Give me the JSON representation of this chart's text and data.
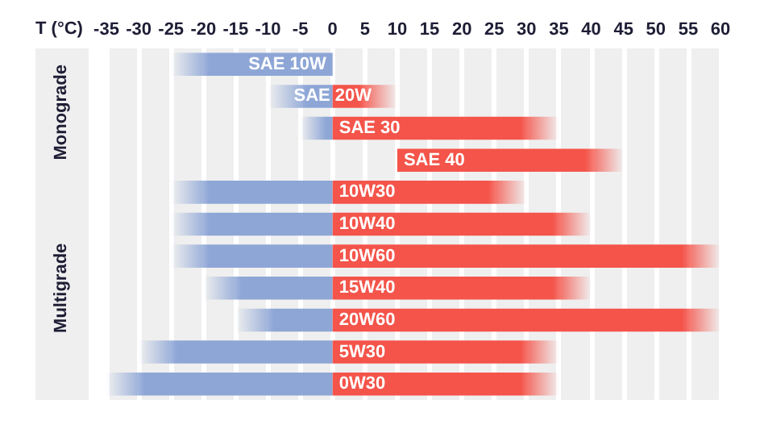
{
  "chart_data": {
    "type": "bar",
    "orientation": "horizontal",
    "xlabel": "T (°C)",
    "categories": [
      "SAE 10W",
      "SAE 20W",
      "SAE 30",
      "SAE 40",
      "10W30",
      "10W40",
      "10W60",
      "15W40",
      "20W60",
      "5W30",
      "0W30"
    ],
    "series": [
      {
        "color": "#8ea6d6",
        "base": [
          -25,
          -10,
          -5,
          null,
          -25,
          -25,
          -25,
          -20,
          -15,
          -30,
          -35
        ],
        "values": [
          25,
          10,
          5,
          null,
          25,
          25,
          25,
          20,
          15,
          30,
          35
        ]
      },
      {
        "color": "#f4544a",
        "base": [
          null,
          0,
          0,
          10,
          0,
          0,
          0,
          0,
          0,
          0,
          0
        ],
        "values": [
          null,
          10,
          35,
          35,
          30,
          40,
          60,
          40,
          60,
          35,
          35
        ]
      }
    ],
    "xlim": [
      -35,
      60
    ],
    "xticks": [
      -35,
      -30,
      -25,
      -20,
      -15,
      -10,
      -5,
      0,
      5,
      10,
      15,
      20,
      25,
      30,
      35,
      40,
      45,
      50,
      55,
      60
    ],
    "grid": "x",
    "tick_labels": "x",
    "annotations": [
      "Monograde",
      "Multigrade"
    ]
  }
}
